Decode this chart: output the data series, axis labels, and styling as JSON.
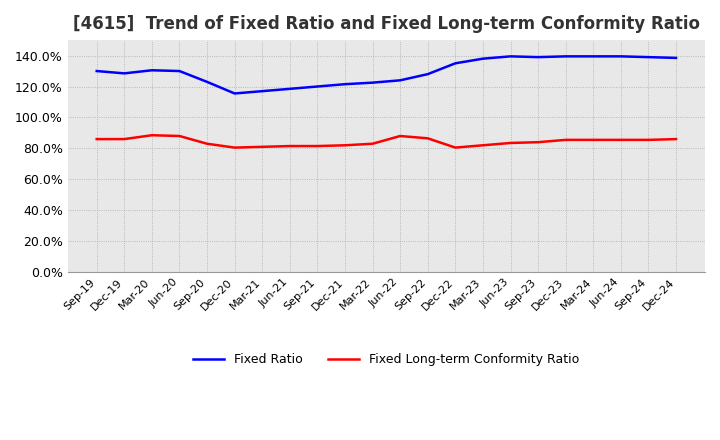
{
  "title": "[4615]  Trend of Fixed Ratio and Fixed Long-term Conformity Ratio",
  "x_labels": [
    "Sep-19",
    "Dec-19",
    "Mar-20",
    "Jun-20",
    "Sep-20",
    "Dec-20",
    "Mar-21",
    "Jun-21",
    "Sep-21",
    "Dec-21",
    "Mar-22",
    "Jun-22",
    "Sep-22",
    "Dec-22",
    "Mar-23",
    "Jun-23",
    "Sep-23",
    "Dec-23",
    "Mar-24",
    "Jun-24",
    "Sep-24",
    "Dec-24"
  ],
  "fixed_ratio": [
    130.0,
    128.5,
    130.5,
    130.0,
    123.0,
    115.5,
    117.0,
    118.5,
    120.0,
    121.5,
    122.5,
    124.0,
    128.0,
    135.0,
    138.0,
    139.5,
    139.0,
    139.5,
    139.5,
    139.5,
    139.0,
    138.5
  ],
  "fixed_lt_ratio": [
    86.0,
    86.0,
    88.5,
    88.0,
    83.0,
    80.5,
    81.0,
    81.5,
    81.5,
    82.0,
    83.0,
    88.0,
    86.5,
    80.5,
    82.0,
    83.5,
    84.0,
    85.5,
    85.5,
    85.5,
    85.5,
    86.0
  ],
  "fixed_ratio_color": "#0000ff",
  "fixed_lt_ratio_color": "#ff0000",
  "ylim": [
    0,
    150
  ],
  "yticks": [
    0,
    20,
    40,
    60,
    80,
    100,
    120,
    140
  ],
  "background_color": "#ffffff",
  "plot_bg_color": "#e8e8e8",
  "grid_color": "#aaaaaa",
  "title_fontsize": 12,
  "legend_labels": [
    "Fixed Ratio",
    "Fixed Long-term Conformity Ratio"
  ]
}
